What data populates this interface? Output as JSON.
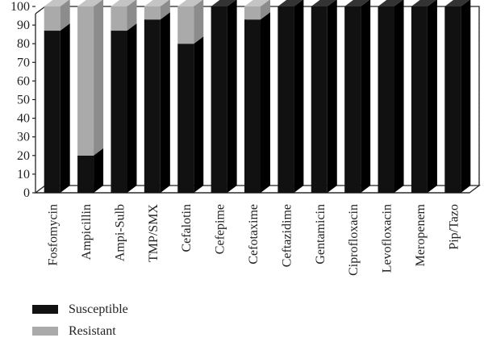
{
  "chart_data": {
    "type": "bar",
    "stacked": true,
    "categories": [
      "Fosfomycin",
      "Ampicillin",
      "Ampi-Sulb",
      "TMP/SMX",
      "Cefalotin",
      "Cefepime",
      "Cefotaxime",
      "Ceftazidime",
      "Gentamicin",
      "Ciprofloxacin",
      "Levofloxacin",
      "Meropenem",
      "Pip/Tazo"
    ],
    "series": [
      {
        "name": "Susceptible",
        "color": "#111111",
        "values": [
          87,
          20,
          87,
          93,
          80,
          100,
          93,
          100,
          100,
          100,
          100,
          100,
          100
        ]
      },
      {
        "name": "Resistant",
        "color": "#aaaaaa",
        "values": [
          13,
          80,
          13,
          7,
          20,
          0,
          7,
          0,
          0,
          0,
          0,
          0,
          0
        ]
      }
    ],
    "yticks": [
      "0",
      "10",
      "20",
      "30",
      "40",
      "50",
      "60",
      "70",
      "80",
      "90",
      "100"
    ],
    "ylim": [
      0,
      100
    ],
    "grid": "dotted vertical",
    "legend_position": "bottom-left"
  }
}
